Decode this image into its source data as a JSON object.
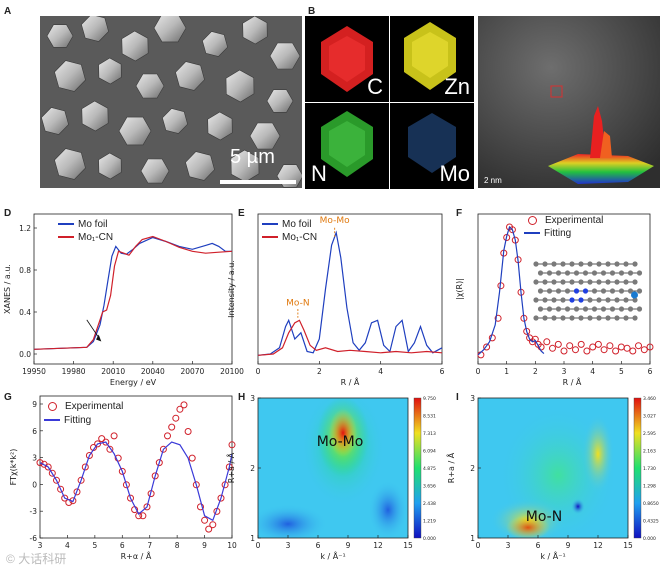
{
  "panels": {
    "a": {
      "letter": "A",
      "scalebar": "5 µm"
    },
    "b": {
      "letter": "B",
      "maps": [
        "C",
        "Zn",
        "N",
        "Mo"
      ]
    },
    "c": {
      "letter": "C",
      "scalebar": "2 nm"
    },
    "d": {
      "letter": "D"
    },
    "e": {
      "letter": "E"
    },
    "f": {
      "letter": "F"
    },
    "g": {
      "letter": "G"
    },
    "h": {
      "letter": "H"
    },
    "i": {
      "letter": "I"
    }
  },
  "colors": {
    "blue": "#1f3fbf",
    "red": "#d0202a",
    "orange": "#e07a10",
    "purple": "#3a3ad8"
  },
  "watermark": "大话科研",
  "chart_data": [
    {
      "id": "D",
      "type": "line",
      "xlabel": "Energy / eV",
      "ylabel": "XANES / a.u.",
      "xlim": [
        19950,
        20100
      ],
      "ylim": [
        -0.05,
        1.3
      ],
      "xticks": [
        "19950",
        "19980",
        "20010",
        "20040",
        "20070",
        "20100"
      ],
      "yticks": [
        "0.0",
        "0.4",
        "0.8",
        "1.2"
      ],
      "series": [
        {
          "name": "Mo foil",
          "color": "#1f3fbf",
          "x": [
            19950,
            19990,
            19995,
            20000,
            20003,
            20006,
            20009,
            20012,
            20016,
            20020,
            20025,
            20030,
            20040,
            20050,
            20060,
            20070,
            20080,
            20085,
            20090,
            20095,
            20100
          ],
          "y": [
            0,
            0.02,
            0.08,
            0.25,
            0.45,
            0.7,
            0.95,
            1.05,
            0.98,
            0.97,
            1.02,
            1.08,
            1.14,
            1.1,
            1.05,
            1.02,
            1.06,
            1.08,
            1.05,
            1.0,
            1.0
          ]
        },
        {
          "name": "Mo₁-CN",
          "color": "#d0202a",
          "x": [
            19950,
            19990,
            19995,
            20000,
            20002,
            20005,
            20008,
            20011,
            20014,
            20018,
            20022,
            20027,
            20032,
            20040,
            20050,
            20060,
            20070,
            20080,
            20090,
            20100
          ],
          "y": [
            0,
            0.02,
            0.1,
            0.3,
            0.38,
            0.4,
            0.55,
            0.85,
            1.0,
            0.98,
            0.96,
            1.05,
            1.12,
            1.15,
            1.1,
            1.04,
            1.0,
            0.98,
            0.99,
            1.0
          ]
        }
      ],
      "annotation_arrow": true
    },
    {
      "id": "E",
      "type": "line",
      "xlabel": "R / Å",
      "ylabel": "Intensity / a.u.",
      "xlim": [
        0,
        6
      ],
      "xticks": [
        "0",
        "2",
        "4",
        "6"
      ],
      "annotations": [
        {
          "text": "Mo-Mo",
          "x": 2.5
        },
        {
          "text": "Mo-N",
          "x": 1.3
        }
      ],
      "series": [
        {
          "name": "Mo foil",
          "color": "#1f3fbf",
          "x": [
            0,
            0.4,
            0.7,
            0.9,
            1.0,
            1.2,
            1.4,
            1.6,
            1.8,
            2.0,
            2.2,
            2.4,
            2.55,
            2.7,
            2.9,
            3.1,
            3.3,
            3.5,
            3.7,
            3.9,
            4.1,
            4.3,
            4.5,
            4.7,
            4.9,
            5.1,
            5.3,
            5.5,
            5.7,
            6.0
          ],
          "y": [
            0.02,
            0.03,
            0.08,
            0.25,
            0.3,
            0.15,
            0.2,
            0.05,
            0.04,
            0.15,
            0.55,
            0.9,
            1.0,
            0.8,
            0.4,
            0.12,
            0.06,
            0.12,
            0.28,
            0.3,
            0.1,
            0.05,
            0.25,
            0.3,
            0.05,
            0.12,
            0.25,
            0.1,
            0.04,
            0.08
          ]
        },
        {
          "name": "Mo₁-CN",
          "color": "#d0202a",
          "x": [
            0,
            0.5,
            0.8,
            1.0,
            1.2,
            1.35,
            1.5,
            1.7,
            1.9,
            2.2,
            2.6,
            3.0,
            3.5,
            4.0,
            4.5,
            5.0,
            5.5,
            6.0
          ],
          "y": [
            0.02,
            0.03,
            0.08,
            0.2,
            0.28,
            0.3,
            0.22,
            0.1,
            0.06,
            0.08,
            0.05,
            0.06,
            0.05,
            0.04,
            0.05,
            0.04,
            0.05,
            0.04
          ]
        }
      ]
    },
    {
      "id": "F",
      "type": "line",
      "xlabel": "R / Å",
      "ylabel": "|χ(R)|",
      "xlim": [
        0,
        6
      ],
      "xticks": [
        "0",
        "1",
        "2",
        "3",
        "4",
        "5",
        "6"
      ],
      "series": [
        {
          "name": "Experimental",
          "color": "#d0202a",
          "marker": "circle",
          "x": [
            0.1,
            0.3,
            0.5,
            0.7,
            0.8,
            0.9,
            1.0,
            1.1,
            1.2,
            1.3,
            1.4,
            1.5,
            1.6,
            1.7,
            1.8,
            1.9,
            2.0,
            2.1,
            2.2,
            2.4,
            2.6,
            2.8,
            3.0,
            3.2,
            3.4,
            3.6,
            3.8,
            4.0,
            4.2,
            4.4,
            4.6,
            4.8,
            5.0,
            5.2,
            5.4,
            5.6,
            5.8,
            6.0
          ],
          "y": [
            0.02,
            0.08,
            0.15,
            0.3,
            0.55,
            0.8,
            0.92,
            1.0,
            0.98,
            0.9,
            0.75,
            0.5,
            0.3,
            0.2,
            0.15,
            0.12,
            0.14,
            0.1,
            0.08,
            0.12,
            0.07,
            0.1,
            0.05,
            0.09,
            0.06,
            0.1,
            0.05,
            0.08,
            0.1,
            0.06,
            0.09,
            0.05,
            0.08,
            0.07,
            0.05,
            0.09,
            0.06,
            0.08
          ]
        },
        {
          "name": "Fitting",
          "color": "#1f3fbf",
          "x": [
            0,
            0.2,
            0.4,
            0.6,
            0.75,
            0.9,
            1.0,
            1.1,
            1.2,
            1.3,
            1.4,
            1.5,
            1.6,
            1.7,
            1.8,
            1.9,
            2.0,
            2.1,
            2.2,
            2.3
          ],
          "y": [
            0.02,
            0.06,
            0.12,
            0.25,
            0.5,
            0.82,
            0.93,
            1.0,
            0.98,
            0.9,
            0.74,
            0.5,
            0.3,
            0.2,
            0.14,
            0.12,
            0.13,
            0.09,
            0.05,
            0.03
          ]
        }
      ]
    },
    {
      "id": "G",
      "type": "line",
      "xlabel": "R+α / Å",
      "ylabel": "FTχ(k*k²)",
      "xlim": [
        3,
        10
      ],
      "ylim": [
        -7,
        9
      ],
      "xticks": [
        "3",
        "4",
        "5",
        "6",
        "7",
        "8",
        "9",
        "10"
      ],
      "yticks": [
        "-6",
        "-3",
        "0",
        "3",
        "6",
        "9"
      ],
      "series": [
        {
          "name": "Experimental",
          "color": "#d0202a",
          "marker": "circle",
          "x": [
            3.0,
            3.15,
            3.3,
            3.45,
            3.6,
            3.75,
            3.9,
            4.05,
            4.2,
            4.35,
            4.5,
            4.65,
            4.8,
            4.95,
            5.1,
            5.25,
            5.4,
            5.55,
            5.7,
            5.85,
            6.0,
            6.15,
            6.3,
            6.45,
            6.6,
            6.75,
            6.9,
            7.05,
            7.2,
            7.35,
            7.5,
            7.65,
            7.8,
            7.95,
            8.1,
            8.25,
            8.4,
            8.55,
            8.7,
            8.85,
            9.0,
            9.15,
            9.3,
            9.45,
            9.6,
            9.75,
            9.9,
            10.0
          ],
          "y": [
            1.5,
            1.3,
            1.0,
            0.3,
            -0.5,
            -1.5,
            -2.5,
            -3.0,
            -2.8,
            -1.8,
            -0.5,
            1.0,
            2.3,
            3.2,
            3.6,
            4.2,
            3.8,
            3.0,
            4.5,
            2.0,
            0.5,
            -1.0,
            -2.5,
            -3.8,
            -4.5,
            -4.5,
            -3.5,
            -2.0,
            0.0,
            1.5,
            3.0,
            4.5,
            5.5,
            6.5,
            7.5,
            8.0,
            5.0,
            2.0,
            -1.0,
            -3.5,
            -5.0,
            -6.0,
            -5.5,
            -4.0,
            -2.5,
            -1.0,
            1.0,
            3.5
          ]
        },
        {
          "name": "Fitting",
          "color": "#3a3ad8",
          "x": [
            3.0,
            3.3,
            3.6,
            3.9,
            4.2,
            4.5,
            4.8,
            5.1,
            5.4,
            5.7,
            6.0,
            6.3,
            6.6,
            6.9,
            7.2,
            7.5,
            7.8,
            8.1,
            8.4,
            8.7,
            9.0,
            9.3,
            9.6,
            9.9,
            10.0
          ],
          "y": [
            1.5,
            1.0,
            -0.5,
            -2.5,
            -2.9,
            -0.5,
            2.3,
            3.6,
            3.8,
            2.5,
            0.5,
            -2.5,
            -4.3,
            -3.5,
            0.0,
            3.0,
            3.8,
            3.5,
            2.0,
            -1.0,
            -4.5,
            -5.0,
            -2.5,
            1.0,
            2.5
          ]
        }
      ]
    },
    {
      "id": "H",
      "type": "heatmap",
      "xlabel": "k / Å⁻¹",
      "ylabel": "R+a / Å",
      "xlim": [
        0,
        15
      ],
      "ylim": [
        1,
        3
      ],
      "xticks": [
        "0",
        "3",
        "6",
        "9",
        "12",
        "15"
      ],
      "yticks": [
        "1",
        "2",
        "3"
      ],
      "annotation": "Mo-Mo",
      "colorbar": [
        "9.750",
        "8.531",
        "7.313",
        "6.094",
        "4.875",
        "3.656",
        "2.438",
        "1.219",
        "0.000"
      ]
    },
    {
      "id": "I",
      "type": "heatmap",
      "xlabel": "k / Å⁻¹",
      "ylabel": "R+a / Å",
      "xlim": [
        0,
        15
      ],
      "ylim": [
        1,
        3
      ],
      "xticks": [
        "0",
        "3",
        "6",
        "9",
        "12",
        "15"
      ],
      "yticks": [
        "1",
        "2",
        "3"
      ],
      "annotation": "Mo-N",
      "colorbar": [
        "3.460",
        "3.027",
        "2.595",
        "2.163",
        "1.730",
        "1.298",
        "0.8650",
        "0.4325",
        "0.000"
      ]
    }
  ]
}
